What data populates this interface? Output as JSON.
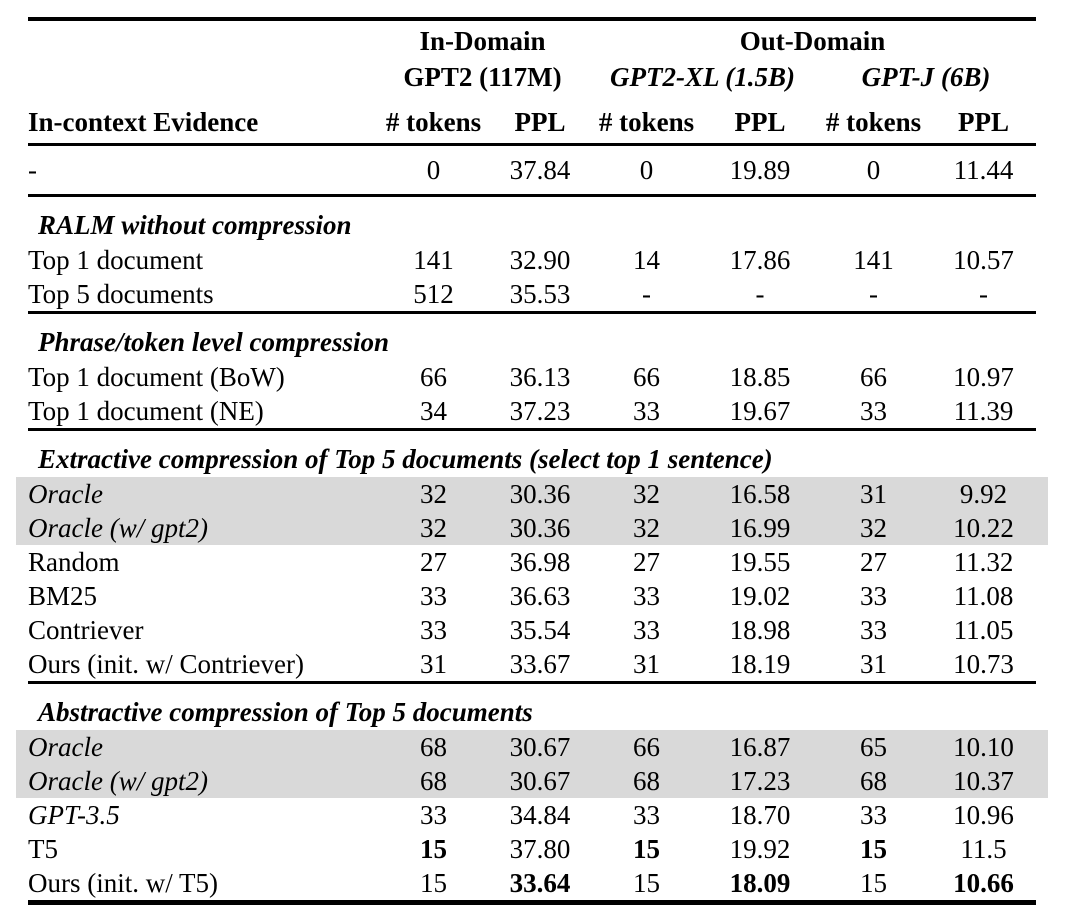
{
  "colors": {
    "highlight": "#d9d9d9",
    "text": "#000000",
    "background": "#ffffff"
  },
  "header": {
    "groups": [
      {
        "label": "In-Domain",
        "colspan": 2
      },
      {
        "label": "Out-Domain",
        "colspan": 4
      }
    ],
    "models": [
      {
        "label": "GPT2 (117M)",
        "italic": false
      },
      {
        "label": "GPT2-XL (1.5B)",
        "italic": true
      },
      {
        "label": "GPT-J (6B)",
        "italic": true
      }
    ],
    "evidence_col": "In-context Evidence",
    "metric_cols": [
      "# tokens",
      "PPL",
      "# tokens",
      "PPL",
      "# tokens",
      "PPL"
    ]
  },
  "baseline": {
    "label": "-",
    "italic": false,
    "highlight": false,
    "cells": [
      "0",
      "37.84",
      "0",
      "19.89",
      "0",
      "11.44"
    ]
  },
  "sections": [
    {
      "title": "RALM without compression",
      "rows": [
        {
          "label": "Top 1 document",
          "italic": false,
          "highlight": false,
          "cells": [
            "141",
            "32.90",
            "14",
            "17.86",
            "141",
            "10.57"
          ]
        },
        {
          "label": "Top 5 documents",
          "italic": false,
          "highlight": false,
          "cells": [
            "512",
            "35.53",
            "-",
            "-",
            "-",
            "-"
          ]
        }
      ]
    },
    {
      "title": "Phrase/token level compression",
      "rows": [
        {
          "label": "Top 1 document (BoW)",
          "italic": false,
          "highlight": false,
          "cells": [
            "66",
            "36.13",
            "66",
            "18.85",
            "66",
            "10.97"
          ]
        },
        {
          "label": "Top 1 document (NE)",
          "italic": false,
          "highlight": false,
          "cells": [
            "34",
            "37.23",
            "33",
            "19.67",
            "33",
            "11.39"
          ]
        }
      ]
    },
    {
      "title": "Extractive compression of Top 5 documents (select top 1 sentence)",
      "rows": [
        {
          "label": "Oracle",
          "italic": true,
          "highlight": true,
          "cells": [
            "32",
            "30.36",
            "32",
            "16.58",
            "31",
            "9.92"
          ]
        },
        {
          "label": "Oracle (w/ gpt2)",
          "italic": true,
          "highlight": true,
          "cells": [
            "32",
            "30.36",
            "32",
            "16.99",
            "32",
            "10.22"
          ]
        },
        {
          "label": "Random",
          "italic": false,
          "highlight": false,
          "cells": [
            "27",
            "36.98",
            "27",
            "19.55",
            "27",
            "11.32"
          ]
        },
        {
          "label": "BM25",
          "italic": false,
          "highlight": false,
          "cells": [
            "33",
            "36.63",
            "33",
            "19.02",
            "33",
            "11.08"
          ]
        },
        {
          "label": "Contriever",
          "italic": false,
          "highlight": false,
          "cells": [
            "33",
            "35.54",
            "33",
            "18.98",
            "33",
            "11.05"
          ]
        },
        {
          "label": "Ours (init. w/ Contriever)",
          "italic": false,
          "highlight": false,
          "cells": [
            "31",
            "33.67",
            "31",
            "18.19",
            "31",
            "10.73"
          ]
        }
      ]
    },
    {
      "title": "Abstractive compression of Top 5 documents",
      "rows": [
        {
          "label": "Oracle",
          "italic": true,
          "highlight": true,
          "cells": [
            "68",
            "30.67",
            "66",
            "16.87",
            "65",
            "10.10"
          ]
        },
        {
          "label": "Oracle (w/ gpt2)",
          "italic": true,
          "highlight": true,
          "cells": [
            "68",
            "30.67",
            "68",
            "17.23",
            "68",
            "10.37"
          ]
        },
        {
          "label": "GPT-3.5",
          "italic": true,
          "highlight": false,
          "cells": [
            "33",
            "34.84",
            "33",
            "18.70",
            "33",
            "10.96"
          ]
        },
        {
          "label": "T5",
          "italic": false,
          "highlight": false,
          "cells": [
            {
              "text": "15",
              "bold": true
            },
            "37.80",
            {
              "text": "15",
              "bold": true
            },
            "19.92",
            {
              "text": "15",
              "bold": true
            },
            "11.5"
          ]
        },
        {
          "label": "Ours (init. w/ T5)",
          "italic": false,
          "highlight": false,
          "cells": [
            "15",
            {
              "text": "33.64",
              "bold": true
            },
            "15",
            {
              "text": "18.09",
              "bold": true
            },
            "15",
            {
              "text": "10.66",
              "bold": true
            }
          ]
        }
      ]
    }
  ]
}
